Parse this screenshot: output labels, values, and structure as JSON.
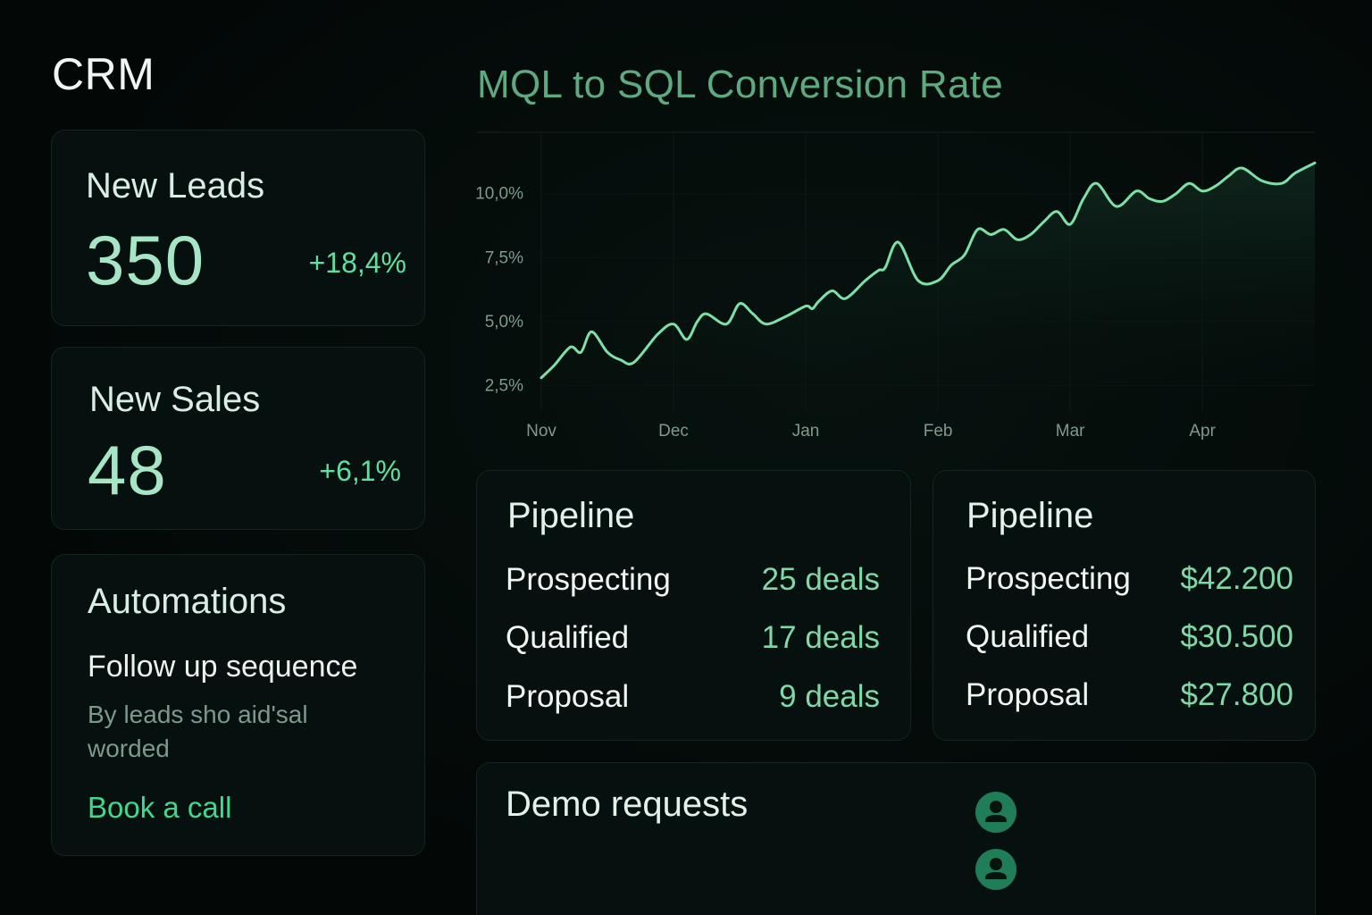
{
  "app": {
    "title": "CRM"
  },
  "stats": [
    {
      "title": "New Leads",
      "value": "350",
      "delta": "+18,4%"
    },
    {
      "title": "New Sales",
      "value": "48",
      "delta": "+6,1%"
    }
  ],
  "automations": {
    "title": "Automations",
    "sequence_name": "Follow up sequence",
    "description": "By leads sho aid'sal worded",
    "link": "Book a call"
  },
  "chart_data": {
    "type": "line",
    "title": "MQL to SQL Conversion Rate",
    "xlabel": "",
    "ylabel": "",
    "x_tick_labels": [
      "Nov",
      "Dec",
      "Jan",
      "Feb",
      "Mar",
      "Apr"
    ],
    "y_tick_labels": [
      "2,5%",
      "5,0%",
      "7,5%",
      "10,0%"
    ],
    "y_ticks": [
      2.5,
      5.0,
      7.5,
      10.0
    ],
    "ylim": [
      1.5,
      12.4
    ],
    "xlim": [
      0,
      5.85
    ],
    "x": [
      0,
      0.1,
      0.22,
      0.3,
      0.38,
      0.5,
      0.6,
      0.7,
      0.88,
      1.0,
      1.1,
      1.18,
      1.25,
      1.4,
      1.5,
      1.6,
      1.7,
      1.85,
      2.0,
      2.05,
      2.1,
      2.2,
      2.3,
      2.45,
      2.55,
      2.6,
      2.7,
      2.85,
      3.0,
      3.1,
      3.2,
      3.3,
      3.4,
      3.5,
      3.6,
      3.7,
      3.8,
      3.9,
      4.0,
      4.1,
      4.2,
      4.35,
      4.5,
      4.6,
      4.7,
      4.8,
      4.9,
      5.0,
      5.1,
      5.2,
      5.3,
      5.45,
      5.6,
      5.7,
      5.85
    ],
    "values": [
      2.8,
      3.3,
      4.0,
      3.8,
      4.6,
      3.8,
      3.5,
      3.4,
      4.5,
      4.9,
      4.3,
      5.0,
      5.3,
      4.9,
      5.7,
      5.3,
      4.9,
      5.2,
      5.6,
      5.5,
      5.8,
      6.2,
      5.9,
      6.6,
      7.0,
      7.1,
      8.1,
      6.6,
      6.6,
      7.2,
      7.6,
      8.6,
      8.4,
      8.6,
      8.2,
      8.4,
      8.9,
      9.3,
      8.8,
      9.8,
      10.4,
      9.5,
      10.1,
      9.8,
      9.7,
      10.0,
      10.4,
      10.1,
      10.3,
      10.7,
      11.0,
      10.5,
      10.4,
      10.8,
      11.2
    ]
  },
  "pipelines": [
    {
      "title": "Pipeline",
      "rows": [
        {
          "label": "Prospecting",
          "value": "25 deals"
        },
        {
          "label": "Qualified",
          "value": "17 deals"
        },
        {
          "label": "Proposal",
          "value": "9 deals"
        }
      ]
    },
    {
      "title": "Pipeline",
      "rows": [
        {
          "label": "Prospecting",
          "value": "$42.200"
        },
        {
          "label": "Qualified",
          "value": "$30.500"
        },
        {
          "label": "Proposal",
          "value": "$27.800"
        }
      ]
    }
  ],
  "demo": {
    "title": "Demo requests",
    "avatars": [
      "user-avatar-icon",
      "user-avatar-icon"
    ]
  },
  "colors": {
    "accent": "#3fd88f",
    "line": "#7de0a6",
    "background": "#040b0a",
    "card": "#06100e"
  }
}
